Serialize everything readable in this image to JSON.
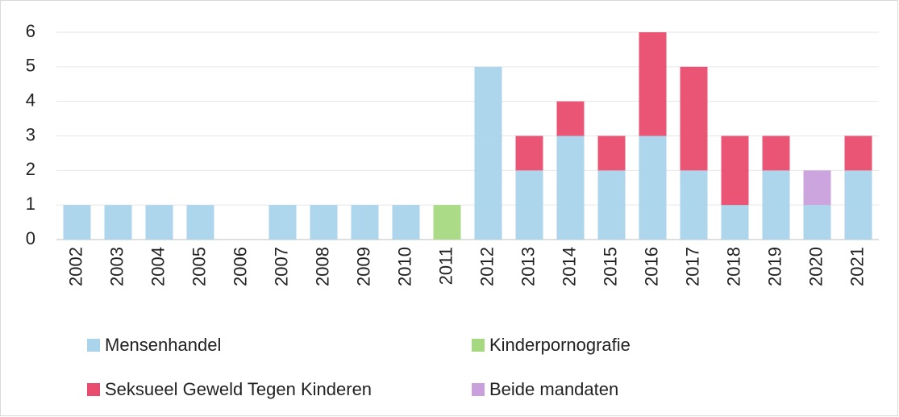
{
  "chart_data": {
    "type": "stacked_bar",
    "categories": [
      "2002",
      "2003",
      "2004",
      "2005",
      "2006",
      "2007",
      "2008",
      "2009",
      "2010",
      "2011",
      "2012",
      "2013",
      "2014",
      "2015",
      "2016",
      "2017",
      "2018",
      "2019",
      "2020",
      "2021"
    ],
    "series": [
      {
        "name": "Mensenhandel",
        "color": "#a9d4ec",
        "values": [
          1,
          1,
          1,
          1,
          0,
          1,
          1,
          1,
          1,
          0,
          5,
          2,
          3,
          2,
          3,
          2,
          1,
          2,
          1,
          2
        ]
      },
      {
        "name": "Kinderpornografie",
        "color": "#a6d97f",
        "values": [
          0,
          0,
          0,
          0,
          0,
          0,
          0,
          0,
          0,
          1,
          0,
          0,
          0,
          0,
          0,
          0,
          0,
          0,
          0,
          0
        ]
      },
      {
        "name": "Seksueel Geweld Tegen Kinderen",
        "color": "#e94b6e",
        "values": [
          0,
          0,
          0,
          0,
          0,
          0,
          0,
          0,
          0,
          0,
          0,
          1,
          1,
          1,
          3,
          3,
          2,
          1,
          0,
          1
        ]
      },
      {
        "name": "Beide mandaten",
        "color": "#c9a0dc",
        "values": [
          0,
          0,
          0,
          0,
          0,
          0,
          0,
          0,
          0,
          0,
          0,
          0,
          0,
          0,
          0,
          0,
          0,
          0,
          1,
          0
        ]
      }
    ],
    "ylim": [
      0,
      6
    ],
    "yticks": [
      0,
      1,
      2,
      3,
      4,
      5,
      6
    ],
    "grid": true
  }
}
